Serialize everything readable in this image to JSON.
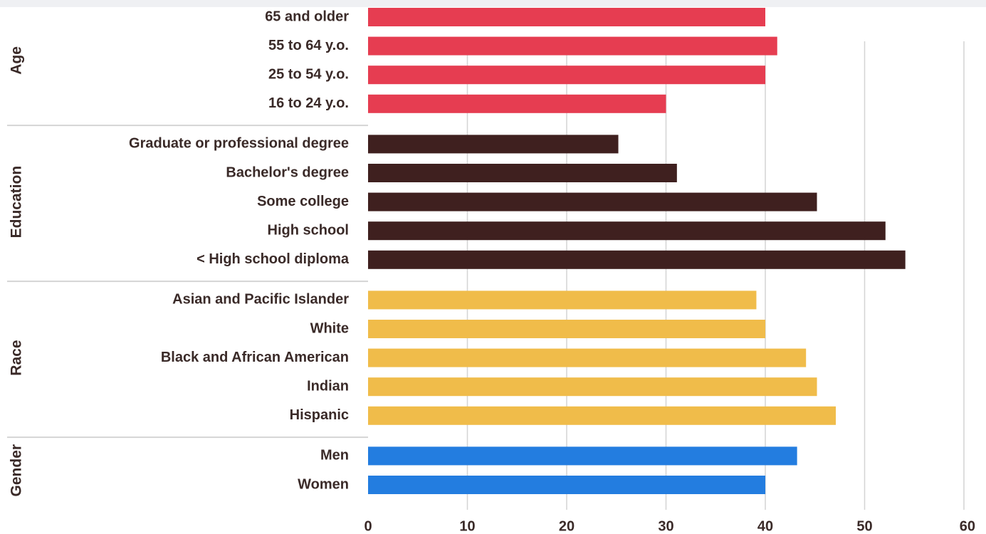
{
  "chart_data": {
    "type": "bar",
    "orientation": "horizontal",
    "title": "",
    "xlabel": "",
    "ylabel": "",
    "xlim": [
      0,
      60
    ],
    "x_ticks": [
      "0",
      "10",
      "20",
      "30",
      "40",
      "50",
      "60"
    ],
    "grid": "vertical",
    "legend": "none",
    "groups": [
      {
        "name": "Age",
        "color": "#e63d51",
        "categories": [
          "65 and older",
          "55 to 64 y.o.",
          "25 to 54 y.o.",
          "16 to 24 y.o."
        ],
        "values": [
          40,
          41.2,
          40,
          30
        ]
      },
      {
        "name": "Education",
        "color": "#3f201f",
        "categories": [
          "Graduate or professional degree",
          "Bachelor's degree",
          "Some college",
          "High school",
          "< High school diploma"
        ],
        "values": [
          25.2,
          31.1,
          45.2,
          52.1,
          54.1
        ]
      },
      {
        "name": "Race",
        "color": "#f0bc4a",
        "categories": [
          "Asian and Pacific Islander",
          "White",
          "Black and African American",
          "Indian",
          "Hispanic"
        ],
        "values": [
          39.1,
          40,
          44.1,
          45.2,
          47.1
        ]
      },
      {
        "name": "Gender",
        "color": "#237de0",
        "categories": [
          "Men",
          "Women"
        ],
        "values": [
          43.2,
          40
        ]
      }
    ]
  }
}
